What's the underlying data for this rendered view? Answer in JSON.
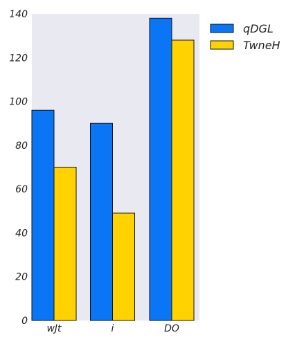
{
  "chart_data": {
    "type": "bar",
    "categories": [
      "wJt",
      "i",
      "DO"
    ],
    "series": [
      {
        "name": "qDGL",
        "values": [
          96,
          90,
          138
        ],
        "color": "#0a75f5"
      },
      {
        "name": "TwneH",
        "values": [
          70,
          49,
          128
        ],
        "color": "#ffd200"
      }
    ],
    "title": "",
    "xlabel": "",
    "ylabel": "",
    "ylim": [
      0,
      140
    ],
    "yticks": [
      "0",
      "20",
      "40",
      "60",
      "80",
      "100",
      "120",
      "140"
    ],
    "grid": false,
    "legend": "top-right, outside plot",
    "background": "#e9e9f2"
  }
}
